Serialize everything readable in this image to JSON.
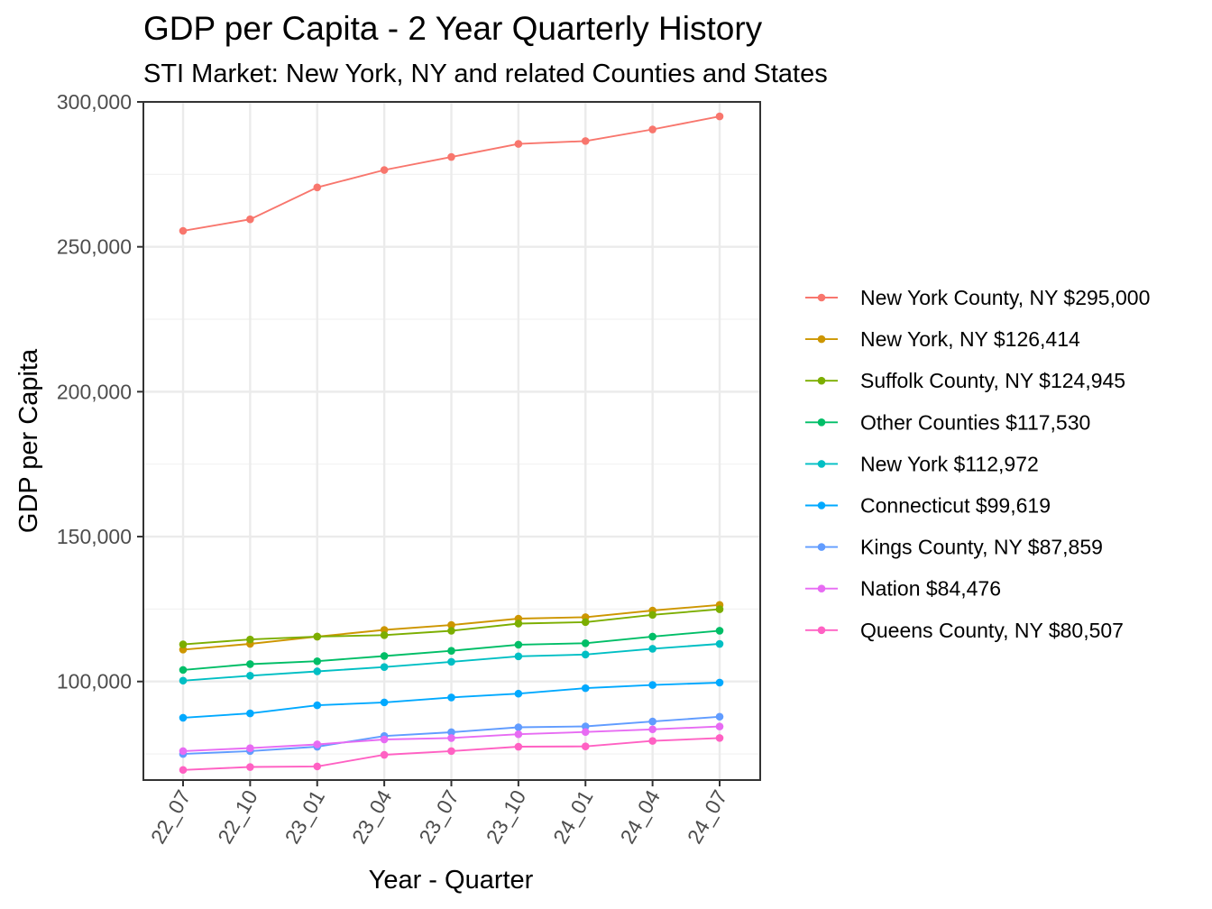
{
  "chart_data": {
    "type": "line",
    "title": "GDP per Capita - 2 Year Quarterly History",
    "subtitle": "STI Market: New York, NY and related Counties and States",
    "xlabel": "Year - Quarter",
    "ylabel": "GDP per Capita",
    "categories": [
      "22_07",
      "22_10",
      "23_01",
      "23_04",
      "23_07",
      "23_10",
      "24_01",
      "24_04",
      "24_07"
    ],
    "ylim": [
      66000,
      300000
    ],
    "yticks": [
      100000,
      150000,
      200000,
      250000,
      300000
    ],
    "ytick_labels": [
      "100,000",
      "150,000",
      "200,000",
      "250,000",
      "300,000"
    ],
    "grid": true,
    "legend_position": "right",
    "series": [
      {
        "name": "New York County, NY $295,000",
        "color": "#F8766D",
        "values": [
          255500,
          259500,
          270500,
          276500,
          281000,
          285500,
          286500,
          290500,
          295000
        ]
      },
      {
        "name": "New York, NY $126,414",
        "color": "#CD9600",
        "values": [
          111000,
          113000,
          115500,
          117800,
          119500,
          121700,
          122200,
          124500,
          126414
        ]
      },
      {
        "name": "Suffolk County, NY $124,945",
        "color": "#7CAE00",
        "values": [
          112800,
          114500,
          115500,
          116000,
          117500,
          120000,
          120500,
          123000,
          124945
        ]
      },
      {
        "name": "Other Counties $117,530",
        "color": "#00BE67",
        "values": [
          104000,
          106000,
          107000,
          108800,
          110600,
          112700,
          113200,
          115500,
          117530
        ]
      },
      {
        "name": "New York $112,972",
        "color": "#00BFC4",
        "values": [
          100300,
          102000,
          103500,
          105000,
          106800,
          108700,
          109300,
          111300,
          112972
        ]
      },
      {
        "name": "Connecticut $99,619",
        "color": "#00A9FF",
        "values": [
          87500,
          89000,
          91800,
          92800,
          94500,
          95800,
          97700,
          98800,
          99619
        ]
      },
      {
        "name": "Kings County, NY $87,859",
        "color": "#619CFF",
        "values": [
          75000,
          76000,
          77500,
          81200,
          82500,
          84200,
          84500,
          86200,
          87859
        ]
      },
      {
        "name": "Nation $84,476",
        "color": "#E76BF3",
        "values": [
          76000,
          77000,
          78300,
          80000,
          80500,
          81800,
          82600,
          83500,
          84476
        ]
      },
      {
        "name": "Queens County, NY $80,507",
        "color": "#FF61C3",
        "values": [
          69500,
          70500,
          70700,
          74700,
          76000,
          77500,
          77600,
          79500,
          80507
        ]
      }
    ]
  }
}
